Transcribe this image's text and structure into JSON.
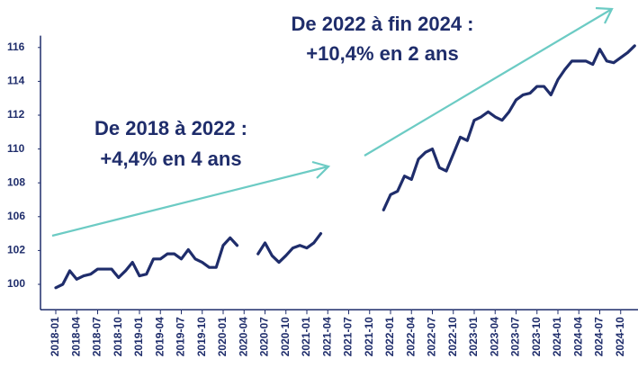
{
  "chart_data": {
    "type": "line",
    "annotations": [
      [
        "De 2018 à 2022 :",
        "+4,4% en 4 ans"
      ],
      [
        "De 2022 à fin 2024 :",
        "+10,4% en 2 ans"
      ]
    ],
    "categories": [
      "2018-01",
      null,
      null,
      "2018-04",
      null,
      null,
      "2018-07",
      null,
      null,
      "2018-10",
      null,
      null,
      "2019-01",
      null,
      null,
      "2019-04",
      null,
      null,
      "2019-07",
      null,
      null,
      "2019-10",
      null,
      null,
      "2020-01",
      null,
      null,
      "2020-04",
      null,
      null,
      "2020-07",
      null,
      null,
      "2020-10",
      null,
      null,
      "2021-01",
      null,
      null,
      "2021-04",
      null,
      null,
      "2021-07",
      null,
      null,
      "2021-10",
      null,
      null,
      "2022-01",
      null,
      null,
      "2022-04",
      null,
      null,
      "2022-07",
      null,
      null,
      "2022-10",
      null,
      null,
      "2023-01",
      null,
      null,
      "2023-04",
      null,
      null,
      "2023-07",
      null,
      null,
      "2023-10",
      null,
      null,
      "2024-01",
      null,
      null,
      "2024-04",
      null,
      null,
      "2024-07",
      null,
      null,
      "2024-10",
      null,
      null
    ],
    "values": [
      99.8,
      100.0,
      100.8,
      100.3,
      100.5,
      100.6,
      100.9,
      100.9,
      100.9,
      100.4,
      100.8,
      101.3,
      100.5,
      100.6,
      101.5,
      101.5,
      101.8,
      101.8,
      101.5,
      102.1,
      101.5,
      101.3,
      101.0,
      101.0,
      102.6,
      103.5,
      102.6,
      null,
      null,
      101.8,
      102.9,
      101.7,
      101.3,
      101.7,
      102.3,
      102.6,
      102.3,
      102.9,
      104.0,
      null,
      null,
      null,
      null,
      null,
      null,
      null,
      null,
      106.4,
      107.3,
      107.5,
      108.4,
      108.2,
      109.4,
      109.8,
      110.0,
      108.9,
      108.7,
      109.7,
      110.7,
      110.5,
      111.7,
      111.9,
      112.2,
      111.9,
      111.7,
      112.2,
      112.9,
      113.2,
      113.3,
      113.7,
      113.7,
      113.2,
      114.1,
      114.7,
      115.2,
      115.2,
      115.2,
      115.0,
      115.9,
      115.2,
      115.1,
      115.4,
      115.7,
      116.1
    ],
    "color": "#1f2d6b",
    "ylim": [
      98.5,
      116.7
    ],
    "yticks": [
      100,
      102,
      106,
      108,
      110,
      112,
      114,
      116
    ]
  }
}
